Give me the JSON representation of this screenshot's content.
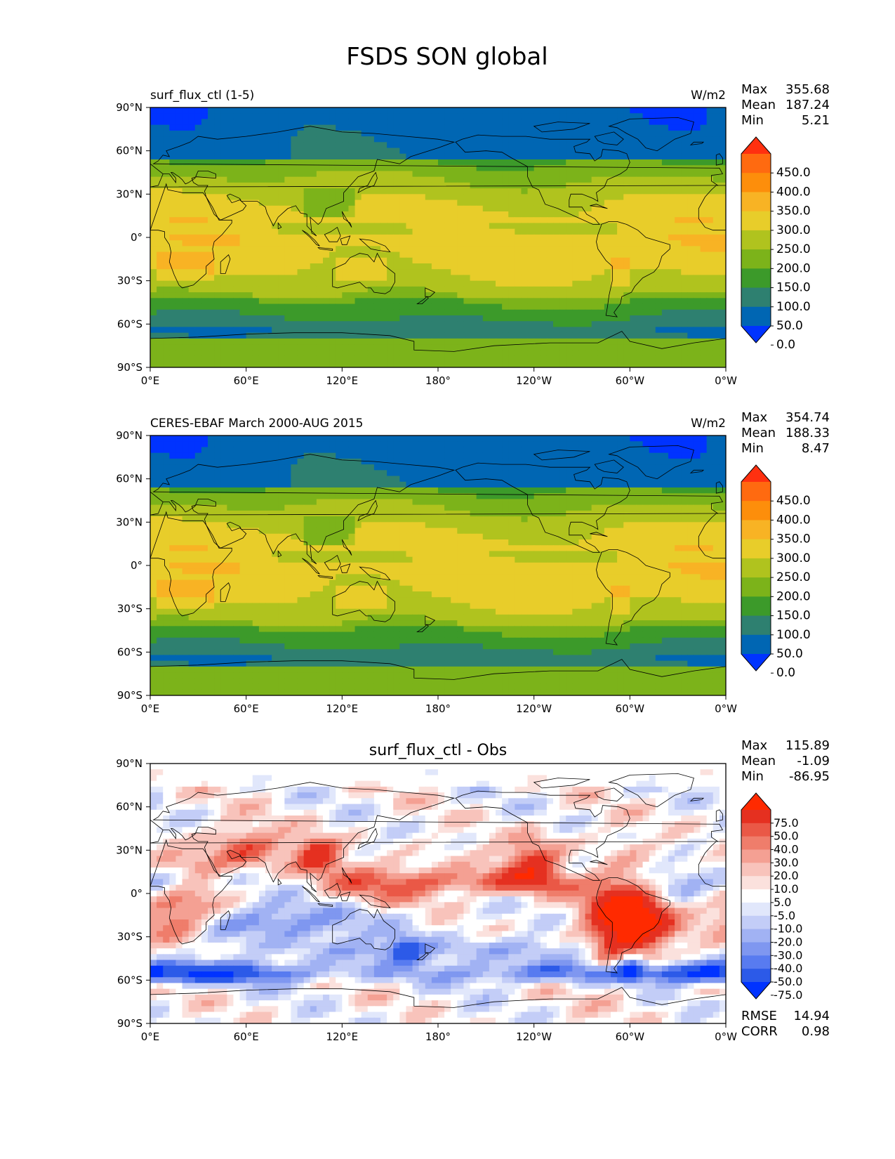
{
  "title": "FSDS SON global",
  "colors": {
    "abs_levels": [
      "#0033ff",
      "#0066b3",
      "#2e8070",
      "#3c9a2a",
      "#7cb31a",
      "#b0c31e",
      "#e8cd2a",
      "#f8b324",
      "#fd8e0b",
      "#ff6a10",
      "#ff3010"
    ],
    "diff_levels": [
      "#0033ff",
      "#2c5ae8",
      "#587bf0",
      "#7f97f0",
      "#a1b2f3",
      "#c3cdf7",
      "#e1e7fb",
      "#ffffff",
      "#fbe1dd",
      "#f8c3bb",
      "#f4a093",
      "#ef7d6b",
      "#ea5846",
      "#e53020",
      "#ff2a00"
    ],
    "coast": "#000000"
  },
  "chart_data": [
    {
      "type": "heatmap",
      "subtitle_left": "surf_flux_ctl (1-5)",
      "units": "W/m2",
      "stats": [
        {
          "label": "Max",
          "value": "355.68"
        },
        {
          "label": "Mean",
          "value": "187.24"
        },
        {
          "label": "Min",
          "value": "5.21"
        }
      ],
      "x_ticks": [
        "0°E",
        "60°E",
        "120°E",
        "180°",
        "120°W",
        "60°W",
        "0°W"
      ],
      "y_ticks": [
        "90°N",
        "60°N",
        "30°N",
        "0°",
        "30°S",
        "60°S",
        "90°S"
      ],
      "xlim": [
        0,
        360
      ],
      "ylim": [
        -90,
        90
      ],
      "colorbar": {
        "extend": "both",
        "labels": [
          "450.0",
          "400.0",
          "350.0",
          "300.0",
          "250.0",
          "200.0",
          "150.0",
          "100.0",
          "50.0",
          "0.0"
        ]
      }
    },
    {
      "type": "heatmap",
      "subtitle_left": "CERES-EBAF March 2000-AUG 2015",
      "units": "W/m2",
      "stats": [
        {
          "label": "Max",
          "value": "354.74"
        },
        {
          "label": "Mean",
          "value": "188.33"
        },
        {
          "label": "Min",
          "value": "8.47"
        }
      ],
      "x_ticks": [
        "0°E",
        "60°E",
        "120°E",
        "180°",
        "120°W",
        "60°W",
        "0°W"
      ],
      "y_ticks": [
        "90°N",
        "60°N",
        "30°N",
        "0°",
        "30°S",
        "60°S",
        "90°S"
      ],
      "xlim": [
        0,
        360
      ],
      "ylim": [
        -90,
        90
      ],
      "colorbar": {
        "extend": "both",
        "labels": [
          "450.0",
          "400.0",
          "350.0",
          "300.0",
          "250.0",
          "200.0",
          "150.0",
          "100.0",
          "50.0",
          "0.0"
        ]
      }
    },
    {
      "type": "heatmap",
      "subtitle_center": "surf_flux_ctl - Obs",
      "stats": [
        {
          "label": "Max",
          "value": "115.89"
        },
        {
          "label": "Mean",
          "value": "-1.09"
        },
        {
          "label": "Min",
          "value": "-86.95"
        }
      ],
      "x_ticks": [
        "0°E",
        "60°E",
        "120°E",
        "180°",
        "120°W",
        "60°W",
        "0°W"
      ],
      "y_ticks": [
        "90°N",
        "60°N",
        "30°N",
        "0°",
        "30°S",
        "60°S",
        "90°S"
      ],
      "xlim": [
        0,
        360
      ],
      "ylim": [
        -90,
        90
      ],
      "colorbar": {
        "extend": "both",
        "labels": [
          "75.0",
          "50.0",
          "40.0",
          "30.0",
          "20.0",
          "10.0",
          "5.0",
          "-5.0",
          "-10.0",
          "-20.0",
          "-30.0",
          "-40.0",
          "-50.0",
          "-75.0"
        ]
      },
      "metrics": [
        {
          "label": "RMSE",
          "value": "14.94"
        },
        {
          "label": "CORR",
          "value": "0.98"
        }
      ]
    }
  ]
}
